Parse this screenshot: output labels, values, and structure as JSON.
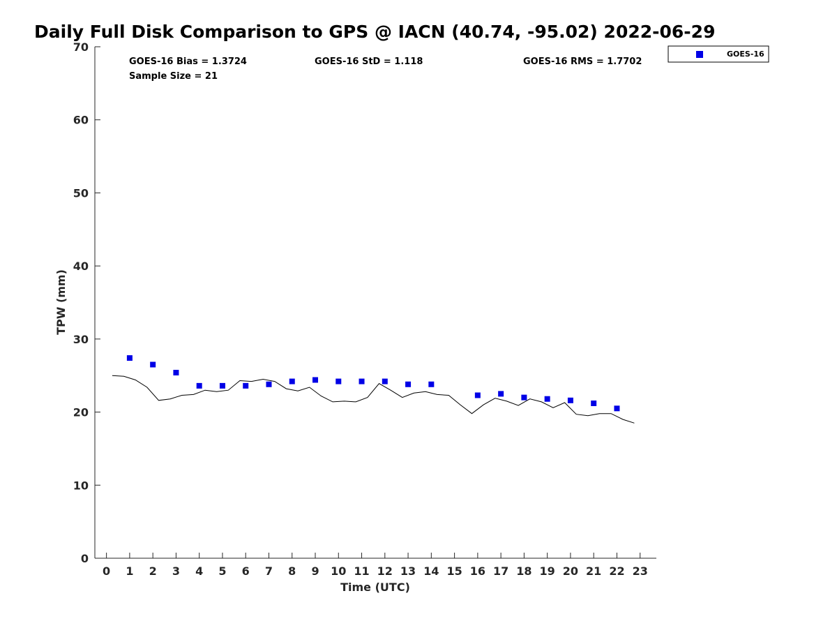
{
  "chart_data": {
    "type": "scatter",
    "title": "Daily Full Disk Comparison to GPS @ IACN (40.74, -95.02) 2022-06-29",
    "xlabel": "Time (UTC)",
    "ylabel": "TPW (mm)",
    "xlim": [
      -0.5,
      23.7
    ],
    "ylim": [
      0,
      70
    ],
    "xticks": [
      0,
      1,
      2,
      3,
      4,
      5,
      6,
      7,
      8,
      9,
      10,
      11,
      12,
      13,
      14,
      15,
      16,
      17,
      18,
      19,
      20,
      21,
      22,
      23
    ],
    "yticks": [
      0,
      10,
      20,
      30,
      40,
      50,
      60,
      70
    ],
    "grid": false,
    "legend_position": "top-right (outside)",
    "stats": {
      "bias": "GOES-16 Bias = 1.3724",
      "std": "GOES-16 StD = 1.118",
      "rms": "GOES-16 RMS = 1.7702",
      "sample": "Sample Size = 21"
    },
    "series": [
      {
        "name": "GOES-16",
        "kind": "markers",
        "color": "#0000e6",
        "x": [
          1,
          2,
          3,
          4,
          5,
          6,
          7,
          8,
          9,
          10,
          11,
          12,
          13,
          14,
          16,
          17,
          18,
          19,
          20,
          21,
          22
        ],
        "y": [
          27.4,
          26.5,
          25.4,
          23.6,
          23.6,
          23.6,
          23.8,
          24.2,
          24.4,
          24.2,
          24.2,
          24.2,
          23.8,
          23.8,
          22.3,
          22.5,
          22.0,
          21.8,
          21.6,
          21.2,
          20.5
        ]
      },
      {
        "kind": "line",
        "color": "#000000",
        "x": [
          0.25,
          0.75,
          1.25,
          1.75,
          2.25,
          2.75,
          3.25,
          3.75,
          4.25,
          4.75,
          5.25,
          5.75,
          6.25,
          6.75,
          7.25,
          7.75,
          8.25,
          8.75,
          9.25,
          9.75,
          10.25,
          10.75,
          11.25,
          11.75,
          12.25,
          12.75,
          13.25,
          13.75,
          14.25,
          14.75,
          15.25,
          15.75,
          16.25,
          16.75,
          17.25,
          17.75,
          18.25,
          18.75,
          19.25,
          19.75,
          20.25,
          20.75,
          21.25,
          21.75,
          22.25,
          22.75
        ],
        "y": [
          25.0,
          24.9,
          24.4,
          23.4,
          21.6,
          21.8,
          22.3,
          22.4,
          23.0,
          22.8,
          23.0,
          24.3,
          24.2,
          24.5,
          24.2,
          23.2,
          22.9,
          23.4,
          22.2,
          21.4,
          21.5,
          21.4,
          22.0,
          23.9,
          23.0,
          22.0,
          22.6,
          22.8,
          22.4,
          22.3,
          21.0,
          19.8,
          21.0,
          21.9,
          21.5,
          20.9,
          21.8,
          21.4,
          20.6,
          21.3,
          19.7,
          19.5,
          19.8,
          19.8,
          19.0,
          18.5
        ]
      }
    ]
  }
}
